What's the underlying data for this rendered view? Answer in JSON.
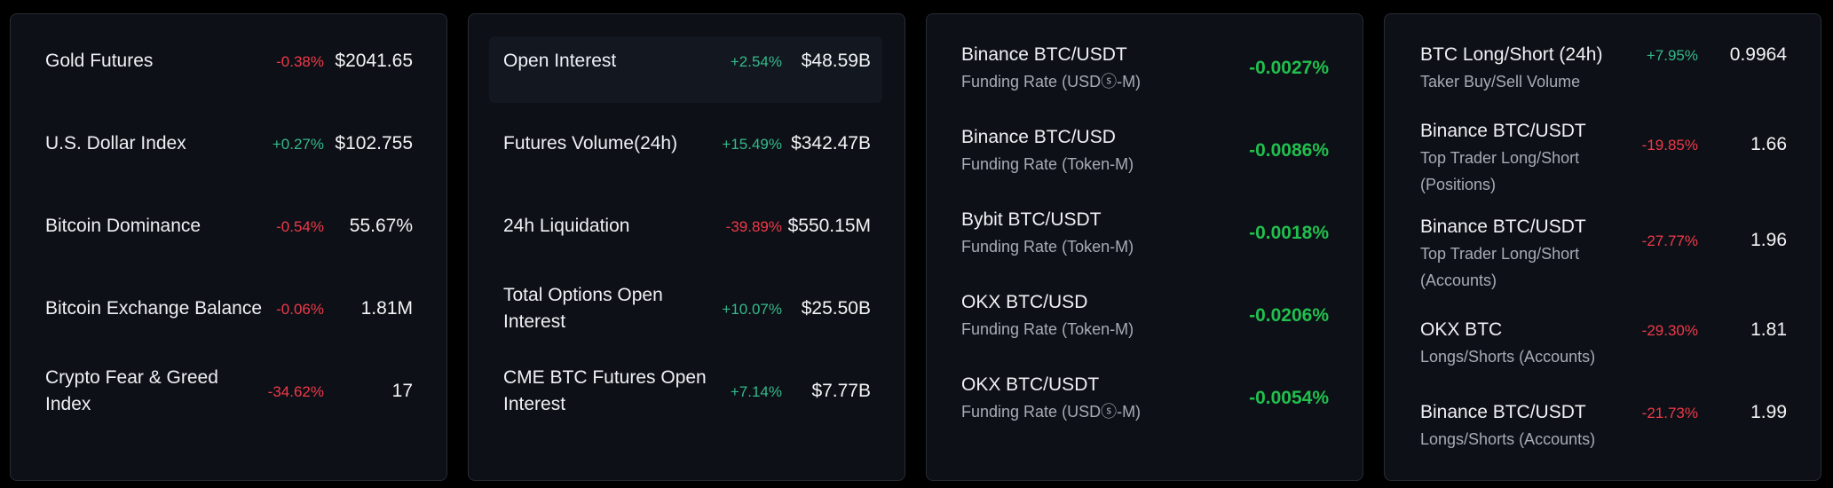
{
  "colors": {
    "up": "#35b98a",
    "down": "#ee3a4a",
    "rate": "#21bf4e"
  },
  "card1": [
    {
      "name": "Gold Futures",
      "change": "-0.38%",
      "dir": "down",
      "value": "$2041.65"
    },
    {
      "name": "U.S. Dollar Index",
      "change": "+0.27%",
      "dir": "up",
      "value": "$102.755"
    },
    {
      "name": "Bitcoin Dominance",
      "change": "-0.54%",
      "dir": "down",
      "value": "55.67%"
    },
    {
      "name": "Bitcoin Exchange Balance",
      "change": "-0.06%",
      "dir": "down",
      "value": "1.81M"
    },
    {
      "name_line1": "Crypto Fear & Greed",
      "name_line2": "Index",
      "change": "-34.62%",
      "dir": "down",
      "value": "17"
    }
  ],
  "card2": [
    {
      "name": "Open Interest",
      "change": "+2.54%",
      "dir": "up",
      "value": "$48.59B"
    },
    {
      "name": "Futures Volume(24h)",
      "change": "+15.49%",
      "dir": "up",
      "value": "$342.47B"
    },
    {
      "name": "24h Liquidation",
      "change": "-39.89%",
      "dir": "down",
      "value": "$550.15M"
    },
    {
      "name_line1": "Total Options Open",
      "name_line2": "Interest",
      "change": "+10.07%",
      "dir": "up",
      "value": "$25.50B"
    },
    {
      "name_line1": "CME BTC Futures Open",
      "name_line2": "Interest",
      "change": "+7.14%",
      "dir": "up",
      "value": "$7.77B"
    }
  ],
  "card3": [
    {
      "name": "Binance BTC/USDT",
      "sub": "Funding Rate (USDⓢ-M)",
      "rate": "-0.0027%"
    },
    {
      "name": "Binance BTC/USD",
      "sub": "Funding Rate (Token-M)",
      "rate": "-0.0086%"
    },
    {
      "name": "Bybit BTC/USDT",
      "sub": "Funding Rate (Token-M)",
      "rate": "-0.0018%"
    },
    {
      "name": "OKX BTC/USD",
      "sub": "Funding Rate (Token-M)",
      "rate": "-0.0206%"
    },
    {
      "name": "OKX BTC/USDT",
      "sub": "Funding Rate (USDⓢ-M)",
      "rate": "-0.0054%"
    }
  ],
  "card4": [
    {
      "name": "BTC Long/Short (24h)",
      "sub": "Taker Buy/Sell Volume",
      "change": "+7.95%",
      "dir": "up",
      "value": "0.9964"
    },
    {
      "name": "Binance BTC/USDT",
      "sub": "Top Trader Long/Short",
      "sub2": "(Positions)",
      "change": "-19.85%",
      "dir": "down",
      "value": "1.66"
    },
    {
      "name": "Binance BTC/USDT",
      "sub": "Top Trader Long/Short",
      "sub2": "(Accounts)",
      "change": "-27.77%",
      "dir": "down",
      "value": "1.96"
    },
    {
      "name": "OKX BTC",
      "sub": "Longs/Shorts (Accounts)",
      "change": "-29.30%",
      "dir": "down",
      "value": "1.81"
    },
    {
      "name": "Binance BTC/USDT",
      "sub": "Longs/Shorts (Accounts)",
      "change": "-21.73%",
      "dir": "down",
      "value": "1.99"
    }
  ]
}
